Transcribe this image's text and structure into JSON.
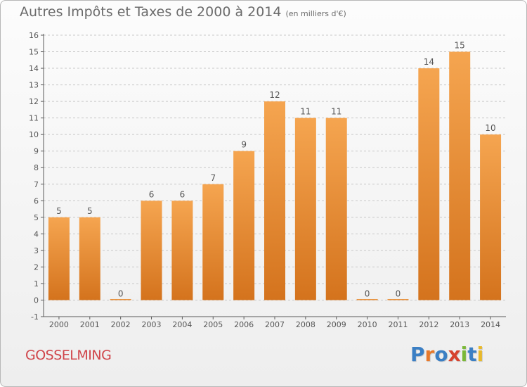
{
  "header": {
    "title": "Autres Impôts et Taxes de 2000 à 2014",
    "subtitle": "(en milliers d'€)"
  },
  "footer": {
    "town": "GOSSELMING",
    "logo": "Proxiti"
  },
  "colors": {
    "bar_top": "#f5a550",
    "bar_bottom": "#d4731d",
    "axis": "#5a5a5a",
    "grid": "#c8c8c8",
    "title": "#6b6b6b",
    "town": "#d0454a"
  },
  "chart_data": {
    "type": "bar",
    "categories": [
      "2000",
      "2001",
      "2002",
      "2003",
      "2004",
      "2005",
      "2006",
      "2007",
      "2008",
      "2009",
      "2010",
      "2011",
      "2012",
      "2013",
      "2014"
    ],
    "values": [
      5,
      5,
      0,
      6,
      6,
      7,
      9,
      12,
      11,
      11,
      0,
      0,
      14,
      15,
      10
    ],
    "data_labels": [
      "5",
      "5",
      "0",
      "6",
      "6",
      "7",
      "9",
      "12",
      "11",
      "11",
      "0",
      "0",
      "14",
      "15",
      "10"
    ],
    "ylim": [
      -1,
      16
    ],
    "yticks": [
      -1,
      0,
      1,
      2,
      3,
      4,
      5,
      6,
      7,
      8,
      9,
      10,
      11,
      12,
      13,
      14,
      15,
      16
    ],
    "grid": true
  }
}
